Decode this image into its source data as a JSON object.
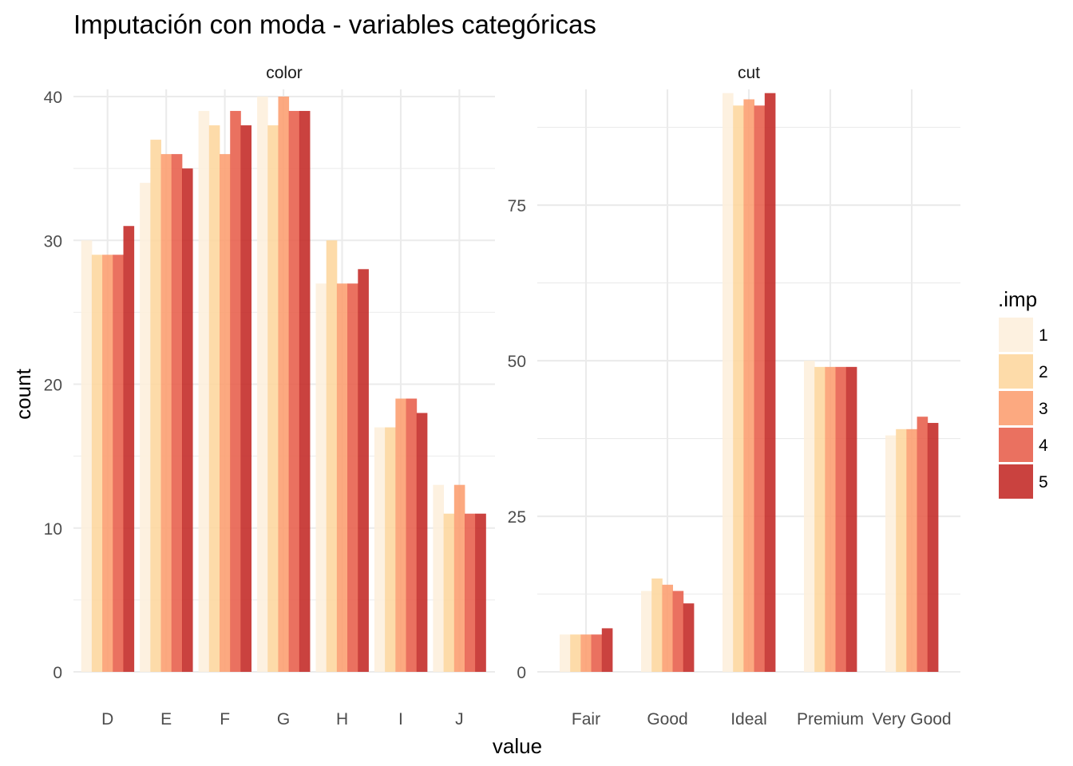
{
  "chart_data": {
    "type": "bar",
    "title": "Imputación con moda - variables categóricas",
    "xlabel": "value",
    "ylabel": "count",
    "grid": true,
    "legend": {
      "title": ".imp",
      "position": "right",
      "entries": [
        "1",
        "2",
        "3",
        "4",
        "5"
      ],
      "colors": [
        "#fdf0dd",
        "#fdd7a0",
        "#fca072",
        "#e8624f",
        "#c42d2a"
      ]
    },
    "facets": [
      {
        "strip": "color",
        "categories": [
          "D",
          "E",
          "F",
          "G",
          "H",
          "I",
          "J"
        ],
        "ylim": [
          0,
          40.5
        ],
        "yticks": [
          0,
          10,
          20,
          30,
          40
        ],
        "series": [
          {
            "name": "1",
            "values": [
              30,
              34,
              39,
              40,
              27,
              17,
              13
            ]
          },
          {
            "name": "2",
            "values": [
              29,
              37,
              38,
              38,
              30,
              17,
              11
            ]
          },
          {
            "name": "3",
            "values": [
              29,
              36,
              36,
              40,
              27,
              19,
              13
            ]
          },
          {
            "name": "4",
            "values": [
              29,
              36,
              39,
              39,
              27,
              19,
              11
            ]
          },
          {
            "name": "5",
            "values": [
              31,
              35,
              38,
              39,
              28,
              18,
              11
            ]
          }
        ]
      },
      {
        "strip": "cut",
        "categories": [
          "Fair",
          "Good",
          "Ideal",
          "Premium",
          "Very Good"
        ],
        "ylim": [
          0,
          93.6
        ],
        "yticks": [
          0,
          25,
          50,
          75
        ],
        "series": [
          {
            "name": "1",
            "values": [
              6,
              13,
              93,
              50,
              38
            ]
          },
          {
            "name": "2",
            "values": [
              6,
              15,
              91,
              49,
              39
            ]
          },
          {
            "name": "3",
            "values": [
              6,
              14,
              92,
              49,
              39
            ]
          },
          {
            "name": "4",
            "values": [
              6,
              13,
              91,
              49,
              41
            ]
          },
          {
            "name": "5",
            "values": [
              7,
              11,
              93,
              49,
              40
            ]
          }
        ]
      }
    ]
  }
}
